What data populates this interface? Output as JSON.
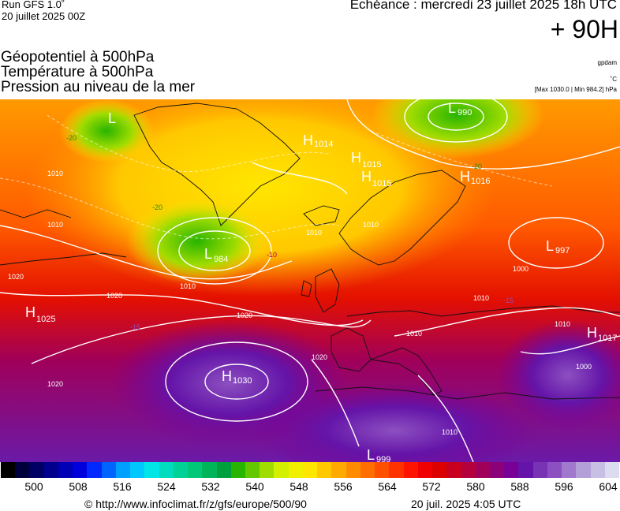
{
  "header": {
    "run": "Run GFS 1.0˚",
    "run_date": "20 juillet 2025 00Z",
    "echeance": "Echéance : mercredi 23 juillet 2025 18h UTC",
    "horizon": "+ 90H"
  },
  "titles": [
    "Géopotentiel à 500hPa",
    "Température à 500hPa",
    "Pression au niveau de la mer"
  ],
  "units": {
    "geopotential": "gpdam",
    "temperature": "˚C",
    "pressure_range": "[Max 1030.0 | Min 984.2] hPa"
  },
  "map": {
    "pressure_centers": [
      {
        "type": "L",
        "value": "990"
      },
      {
        "type": "H",
        "value": "1014"
      },
      {
        "type": "H",
        "value": "1015"
      },
      {
        "type": "H",
        "value": "1015"
      },
      {
        "type": "H",
        "value": "1016"
      },
      {
        "type": "L",
        "value": "984"
      },
      {
        "type": "L",
        "value": "997"
      },
      {
        "type": "H",
        "value": "1025"
      },
      {
        "type": "H",
        "value": "1030"
      },
      {
        "type": "H",
        "value": "1017"
      },
      {
        "type": "L",
        "value": "999"
      },
      {
        "type": "L",
        "value": ""
      }
    ],
    "isobar_labels": [
      "1010",
      "1010",
      "1010",
      "1010",
      "1010",
      "1010",
      "1010",
      "1010",
      "1020",
      "1020",
      "1020",
      "1020",
      "1020",
      "1000",
      "1000",
      "1010"
    ],
    "temperature_labels": [
      "-20",
      "-20",
      "-20",
      "-10",
      "-15",
      "-15"
    ]
  },
  "colorbar": {
    "ticks": [
      "500",
      "508",
      "516",
      "524",
      "532",
      "540",
      "548",
      "556",
      "564",
      "572",
      "580",
      "588",
      "596",
      "604"
    ],
    "colors": [
      "#000000",
      "#00003c",
      "#000064",
      "#00008c",
      "#0000b4",
      "#0000dc",
      "#0028ff",
      "#0064ff",
      "#00a0ff",
      "#00c8ff",
      "#00e6e6",
      "#00dcbe",
      "#00d296",
      "#00c878",
      "#00b45a",
      "#00a03c",
      "#28b400",
      "#64c800",
      "#a0dc00",
      "#d2f000",
      "#f0f000",
      "#ffe600",
      "#ffc800",
      "#ffaa00",
      "#ff8c00",
      "#ff6e00",
      "#ff5000",
      "#ff3200",
      "#ff1400",
      "#f00000",
      "#dc0000",
      "#c8001e",
      "#b4003c",
      "#a0005a",
      "#8c0078",
      "#780096",
      "#6414a8",
      "#7832b4",
      "#8c50c0",
      "#a078cc",
      "#b4a0d8",
      "#c8c0e4",
      "#dcdcf0"
    ]
  },
  "footer": {
    "credit": "© http://www.infoclimat.fr/z/gfs/europe/500/90",
    "run_datetime": "20 juil. 2025  4:05 UTC"
  }
}
